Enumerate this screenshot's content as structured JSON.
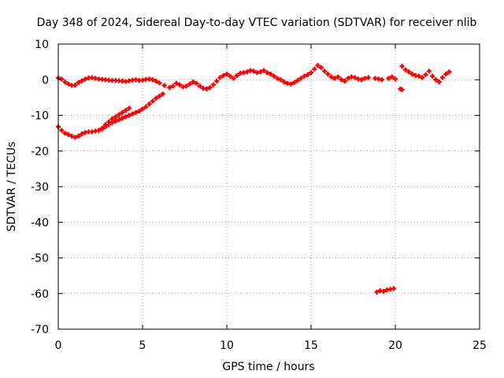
{
  "chart_data": {
    "type": "scatter",
    "title": "Day 348 of 2024, Sidereal Day-to-day VTEC variation (SDTVAR) for receiver nlib",
    "xlabel": "GPS time / hours",
    "ylabel": "SDTVAR / TECUs",
    "xlim": [
      0,
      25
    ],
    "ylim": [
      -70,
      10
    ],
    "xticks": [
      0,
      5,
      10,
      15,
      20,
      25
    ],
    "yticks": [
      10,
      0,
      -10,
      -20,
      -30,
      -40,
      -50,
      -60,
      -70
    ],
    "grid": true,
    "marker_color": "#ff0000",
    "series": [
      {
        "name": "main",
        "points": [
          [
            0.0,
            0.5
          ],
          [
            0.2,
            0.2
          ],
          [
            0.4,
            -0.6
          ],
          [
            0.6,
            -1.2
          ],
          [
            0.8,
            -1.6
          ],
          [
            1.0,
            -1.5
          ],
          [
            1.2,
            -0.8
          ],
          [
            1.4,
            -0.3
          ],
          [
            1.6,
            0.2
          ],
          [
            1.8,
            0.5
          ],
          [
            2.0,
            0.6
          ],
          [
            2.2,
            0.4
          ],
          [
            2.4,
            0.2
          ],
          [
            2.6,
            0.1
          ],
          [
            2.8,
            0.0
          ],
          [
            3.0,
            -0.1
          ],
          [
            3.2,
            -0.2
          ],
          [
            3.4,
            -0.2
          ],
          [
            3.6,
            -0.3
          ],
          [
            3.8,
            -0.4
          ],
          [
            4.0,
            -0.5
          ],
          [
            4.2,
            -0.3
          ],
          [
            4.4,
            -0.1
          ],
          [
            4.6,
            0.0
          ],
          [
            4.8,
            -0.2
          ],
          [
            5.0,
            -0.1
          ],
          [
            5.2,
            0.1
          ],
          [
            5.4,
            0.2
          ],
          [
            5.6,
            0.0
          ],
          [
            5.8,
            -0.4
          ],
          [
            6.0,
            -0.9
          ],
          [
            6.3,
            -1.6
          ],
          [
            6.6,
            -2.2
          ],
          [
            6.8,
            -1.8
          ],
          [
            7.0,
            -1.0
          ],
          [
            7.2,
            -1.4
          ],
          [
            7.4,
            -2.0
          ],
          [
            7.6,
            -1.8
          ],
          [
            7.8,
            -1.2
          ],
          [
            8.0,
            -0.6
          ],
          [
            8.2,
            -1.0
          ],
          [
            8.4,
            -1.8
          ],
          [
            8.6,
            -2.4
          ],
          [
            8.8,
            -2.6
          ],
          [
            9.0,
            -2.2
          ],
          [
            9.2,
            -1.4
          ],
          [
            9.4,
            -0.4
          ],
          [
            9.6,
            0.6
          ],
          [
            9.8,
            1.2
          ],
          [
            10.0,
            1.6
          ],
          [
            10.2,
            1.0
          ],
          [
            10.4,
            0.4
          ],
          [
            10.6,
            1.2
          ],
          [
            10.8,
            1.8
          ],
          [
            11.0,
            2.0
          ],
          [
            11.2,
            2.2
          ],
          [
            11.4,
            2.6
          ],
          [
            11.6,
            2.4
          ],
          [
            11.8,
            2.0
          ],
          [
            12.0,
            2.2
          ],
          [
            12.2,
            2.6
          ],
          [
            12.4,
            2.0
          ],
          [
            12.6,
            1.6
          ],
          [
            12.8,
            1.0
          ],
          [
            13.0,
            0.4
          ],
          [
            13.2,
            0.0
          ],
          [
            13.4,
            -0.6
          ],
          [
            13.6,
            -1.0
          ],
          [
            13.8,
            -1.2
          ],
          [
            14.0,
            -0.8
          ],
          [
            14.2,
            -0.2
          ],
          [
            14.4,
            0.4
          ],
          [
            14.6,
            1.0
          ],
          [
            14.8,
            1.4
          ],
          [
            15.0,
            2.0
          ],
          [
            15.2,
            3.0
          ],
          [
            15.4,
            4.0
          ],
          [
            15.6,
            3.4
          ],
          [
            15.8,
            2.4
          ],
          [
            16.0,
            1.6
          ],
          [
            16.2,
            0.8
          ],
          [
            16.4,
            0.4
          ],
          [
            16.6,
            0.8
          ],
          [
            16.8,
            0.0
          ],
          [
            17.0,
            -0.4
          ],
          [
            17.2,
            0.4
          ],
          [
            17.4,
            0.8
          ],
          [
            17.6,
            0.6
          ],
          [
            17.8,
            0.2
          ],
          [
            18.0,
            0.0
          ],
          [
            18.2,
            0.4
          ],
          [
            18.4,
            0.6
          ],
          [
            18.8,
            0.4
          ],
          [
            19.0,
            0.2
          ],
          [
            19.2,
            0.0
          ],
          [
            19.6,
            0.4
          ],
          [
            19.8,
            0.8
          ],
          [
            20.0,
            0.2
          ],
          [
            20.4,
            3.8
          ],
          [
            20.6,
            2.8
          ],
          [
            20.8,
            2.2
          ],
          [
            21.0,
            1.6
          ],
          [
            21.2,
            1.2
          ],
          [
            21.4,
            1.0
          ],
          [
            21.6,
            0.6
          ],
          [
            21.8,
            1.4
          ],
          [
            22.0,
            2.4
          ],
          [
            22.2,
            1.0
          ],
          [
            22.4,
            0.0
          ],
          [
            22.6,
            -0.6
          ],
          [
            22.8,
            0.6
          ],
          [
            23.0,
            1.6
          ],
          [
            23.2,
            2.2
          ],
          [
            20.3,
            -2.6
          ],
          [
            20.4,
            -2.8
          ]
        ]
      },
      {
        "name": "lower-branch",
        "points": [
          [
            0.0,
            -13.2
          ],
          [
            0.2,
            -14.2
          ],
          [
            0.4,
            -15.0
          ],
          [
            0.6,
            -15.4
          ],
          [
            0.8,
            -15.8
          ],
          [
            1.0,
            -16.2
          ],
          [
            1.2,
            -15.8
          ],
          [
            1.4,
            -15.2
          ],
          [
            1.6,
            -14.8
          ],
          [
            1.8,
            -14.6
          ],
          [
            2.0,
            -14.6
          ],
          [
            2.2,
            -14.4
          ],
          [
            2.4,
            -14.2
          ],
          [
            2.6,
            -13.8
          ],
          [
            2.8,
            -13.2
          ],
          [
            3.0,
            -12.6
          ],
          [
            3.2,
            -12.0
          ],
          [
            3.4,
            -11.6
          ],
          [
            3.6,
            -11.2
          ],
          [
            3.8,
            -10.8
          ],
          [
            4.0,
            -10.4
          ],
          [
            4.2,
            -10.0
          ],
          [
            4.4,
            -9.6
          ],
          [
            4.6,
            -9.2
          ],
          [
            4.8,
            -8.8
          ],
          [
            5.0,
            -8.2
          ],
          [
            5.2,
            -7.6
          ],
          [
            5.4,
            -6.8
          ],
          [
            5.6,
            -6.0
          ],
          [
            5.8,
            -5.2
          ],
          [
            6.0,
            -4.6
          ],
          [
            6.2,
            -4.0
          ]
        ]
      },
      {
        "name": "upper-branch",
        "points": [
          [
            2.6,
            -13.6
          ],
          [
            2.8,
            -12.6
          ],
          [
            3.0,
            -11.8
          ],
          [
            3.2,
            -11.0
          ],
          [
            3.4,
            -10.4
          ],
          [
            3.6,
            -9.8
          ],
          [
            3.8,
            -9.2
          ],
          [
            4.0,
            -8.6
          ],
          [
            4.2,
            -8.0
          ]
        ]
      },
      {
        "name": "outlier",
        "points": [
          [
            18.9,
            -59.6
          ],
          [
            19.1,
            -59.2
          ],
          [
            19.3,
            -59.4
          ],
          [
            19.5,
            -59.0
          ],
          [
            19.7,
            -58.8
          ],
          [
            19.9,
            -58.6
          ]
        ]
      }
    ]
  }
}
